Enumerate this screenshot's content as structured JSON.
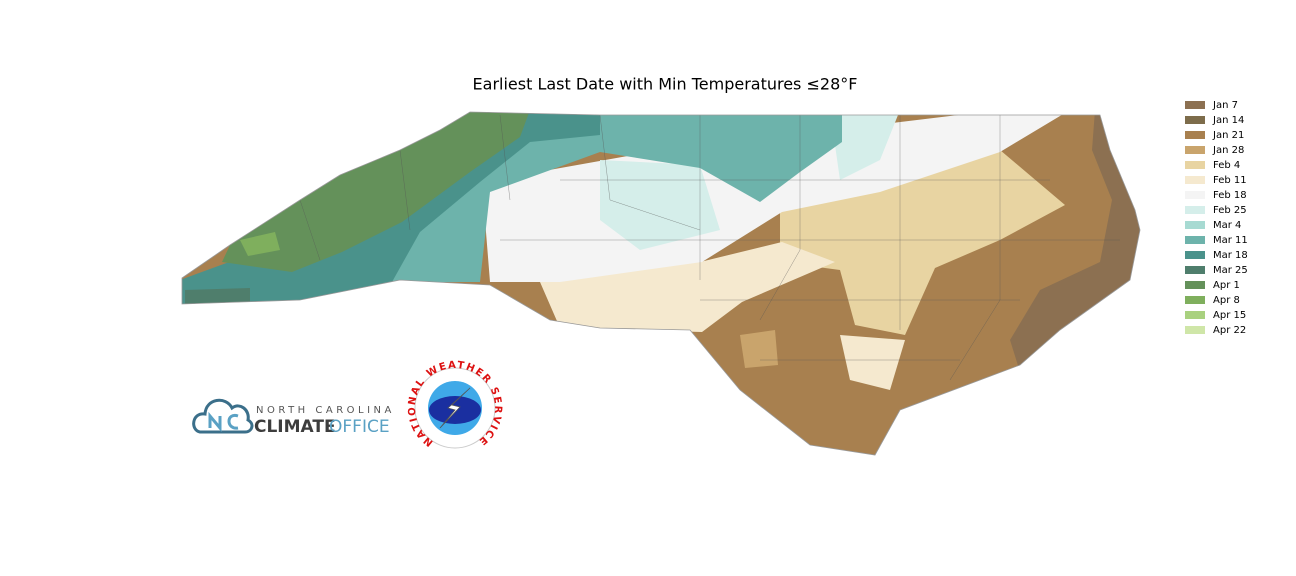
{
  "title": "Earliest Last Date with Min Temperatures  ≤28°F",
  "legend": [
    {
      "label": "Jan 7",
      "color": "#8c7051"
    },
    {
      "label": "Jan 14",
      "color": "#7d6c4b"
    },
    {
      "label": "Jan 21",
      "color": "#a8804f"
    },
    {
      "label": "Jan 28",
      "color": "#c9a46c"
    },
    {
      "label": "Feb 4",
      "color": "#e8d4a2"
    },
    {
      "label": "Feb 11",
      "color": "#f5e9cf"
    },
    {
      "label": "Feb 18",
      "color": "#f4f4f4"
    },
    {
      "label": "Feb 25",
      "color": "#d5eeea"
    },
    {
      "label": "Mar 4",
      "color": "#a7dad2"
    },
    {
      "label": "Mar 11",
      "color": "#6db3ab"
    },
    {
      "label": "Mar 18",
      "color": "#4a928b"
    },
    {
      "label": "Mar 25",
      "color": "#4f7e6c"
    },
    {
      "label": "Apr 1",
      "color": "#64915a"
    },
    {
      "label": "Apr 8",
      "color": "#7faf5d"
    },
    {
      "label": "Apr 15",
      "color": "#a9d17f"
    },
    {
      "label": "Apr 22",
      "color": "#cfe6a8"
    }
  ],
  "logos": {
    "climate_office": {
      "top": "NORTH CAROLINA",
      "bold": "CLIMATE",
      "light": "OFFICE"
    },
    "nws": {
      "ring": "NATIONAL WEATHER SERVICE"
    }
  }
}
